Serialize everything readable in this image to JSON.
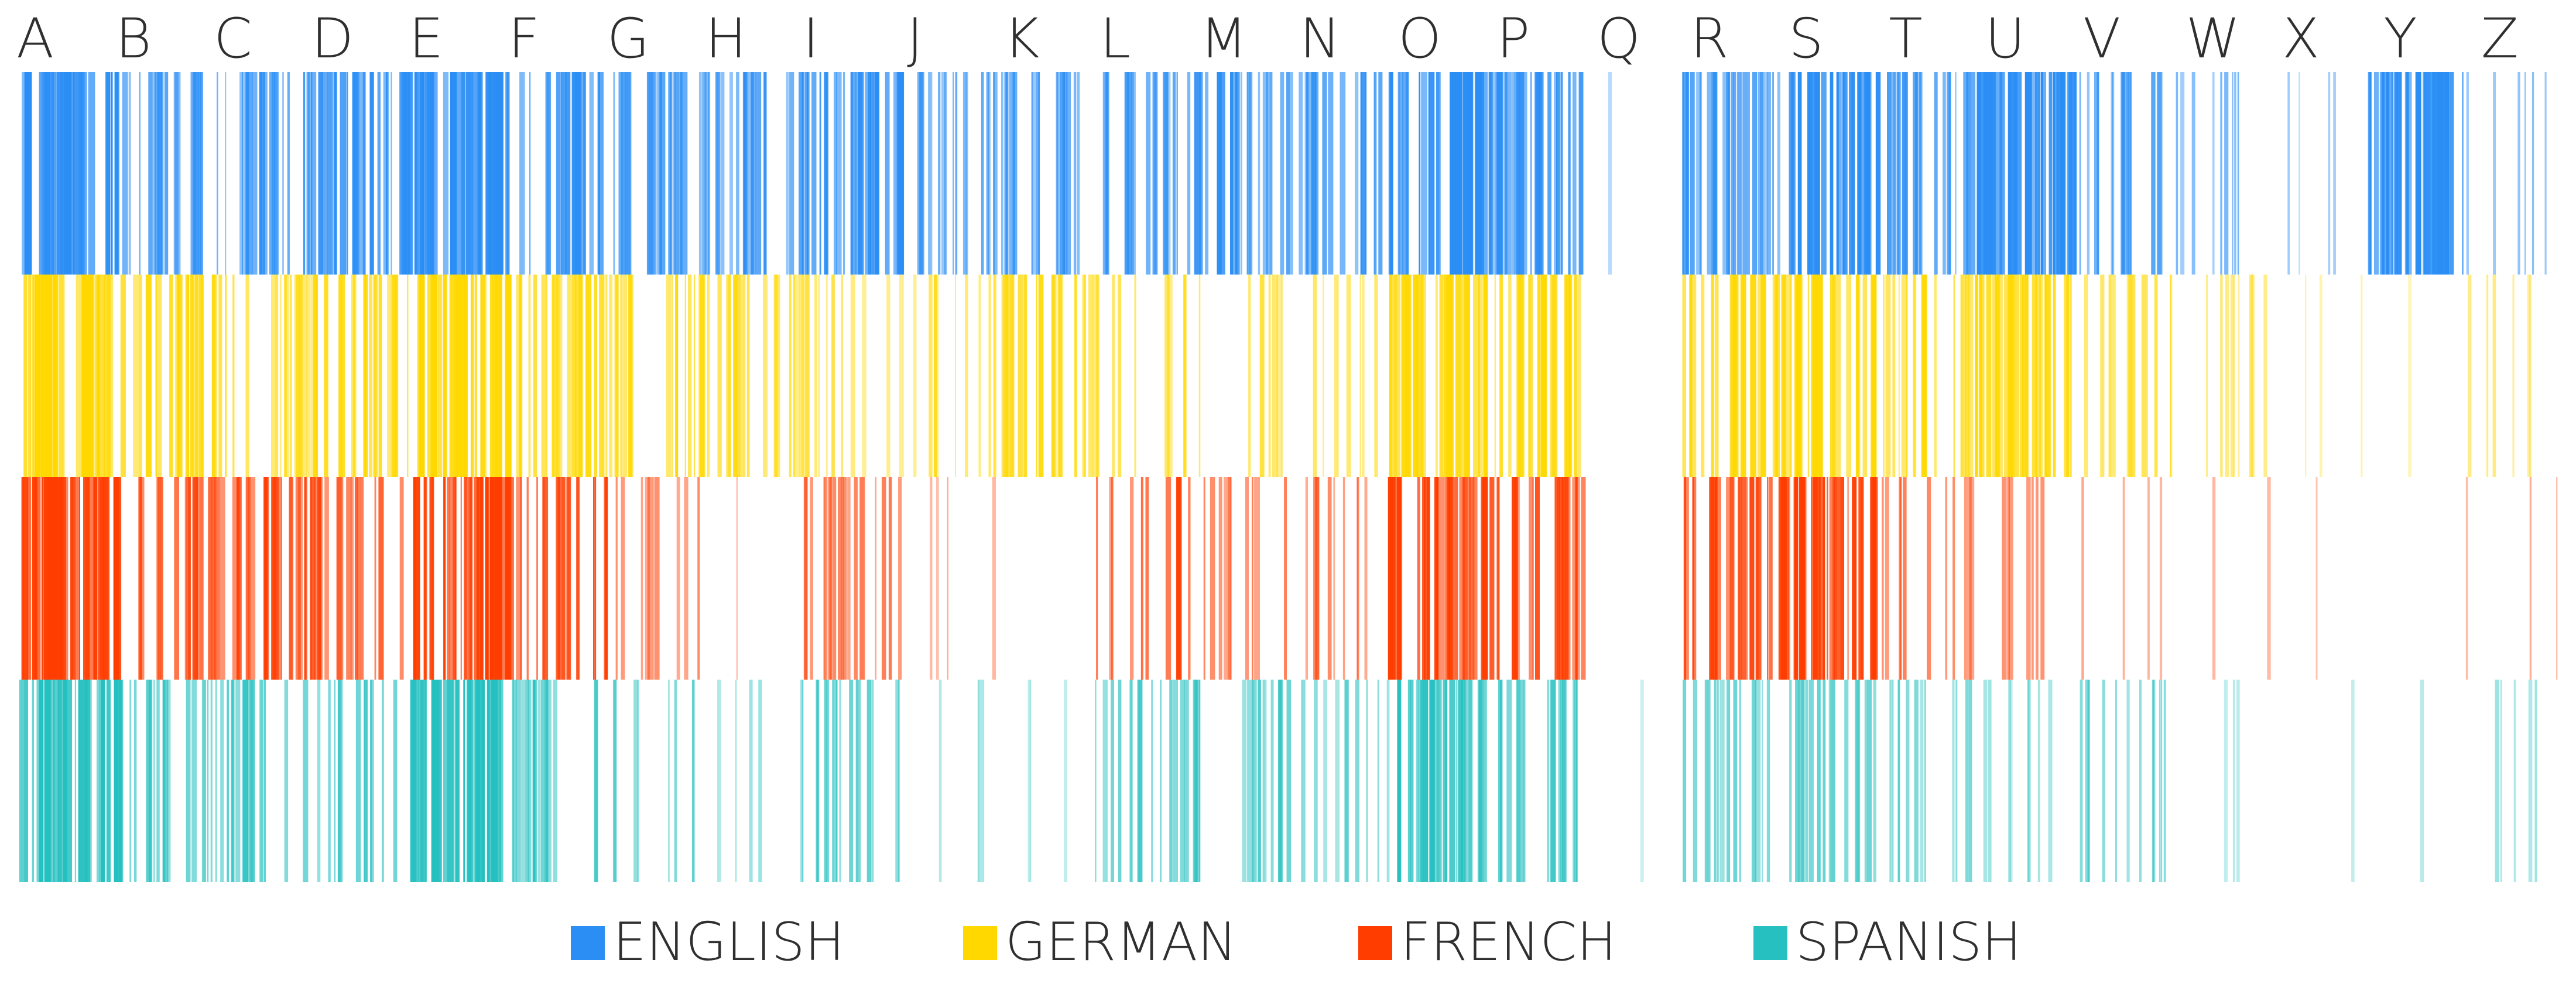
{
  "chart_data": {
    "type": "heatmap",
    "title": "",
    "xlabel": "",
    "ylabel": "",
    "categories": [
      "A",
      "B",
      "C",
      "D",
      "E",
      "F",
      "G",
      "H",
      "I",
      "J",
      "K",
      "L",
      "M",
      "N",
      "O",
      "P",
      "Q",
      "R",
      "S",
      "T",
      "U",
      "V",
      "W",
      "X",
      "Y",
      "Z"
    ],
    "series": [
      {
        "name": "ENGLISH",
        "color": "#2b8ef5",
        "letter_density": [
          0.95,
          0.72,
          0.7,
          0.78,
          0.9,
          0.72,
          0.7,
          0.65,
          0.82,
          0.58,
          0.6,
          0.6,
          0.72,
          0.62,
          0.95,
          0.8,
          0.1,
          0.7,
          0.85,
          0.7,
          0.92,
          0.62,
          0.45,
          0.25,
          0.95,
          0.38
        ]
      },
      {
        "name": "GERMAN",
        "color": "#ffd800",
        "letter_density": [
          0.88,
          0.7,
          0.55,
          0.66,
          0.9,
          0.72,
          0.62,
          0.5,
          0.45,
          0.42,
          0.7,
          0.48,
          0.42,
          0.4,
          0.78,
          0.72,
          0.0,
          0.7,
          0.8,
          0.6,
          0.75,
          0.5,
          0.4,
          0.15,
          0.05,
          0.28
        ]
      },
      {
        "name": "FRENCH",
        "color": "#ff3d00",
        "letter_density": [
          0.92,
          0.62,
          0.68,
          0.62,
          0.92,
          0.65,
          0.42,
          0.18,
          0.52,
          0.2,
          0.1,
          0.55,
          0.48,
          0.38,
          0.82,
          0.72,
          0.0,
          0.72,
          0.85,
          0.5,
          0.35,
          0.22,
          0.15,
          0.08,
          0.1,
          0.22
        ]
      },
      {
        "name": "SPANISH",
        "color": "#26c0c0",
        "letter_density": [
          0.92,
          0.58,
          0.55,
          0.5,
          0.92,
          0.52,
          0.38,
          0.25,
          0.55,
          0.18,
          0.1,
          0.55,
          0.5,
          0.38,
          0.78,
          0.55,
          0.0,
          0.52,
          0.55,
          0.4,
          0.2,
          0.4,
          0.1,
          0.05,
          0.15,
          0.25
        ]
      }
    ],
    "legend": "bottom-center",
    "grid": false
  }
}
